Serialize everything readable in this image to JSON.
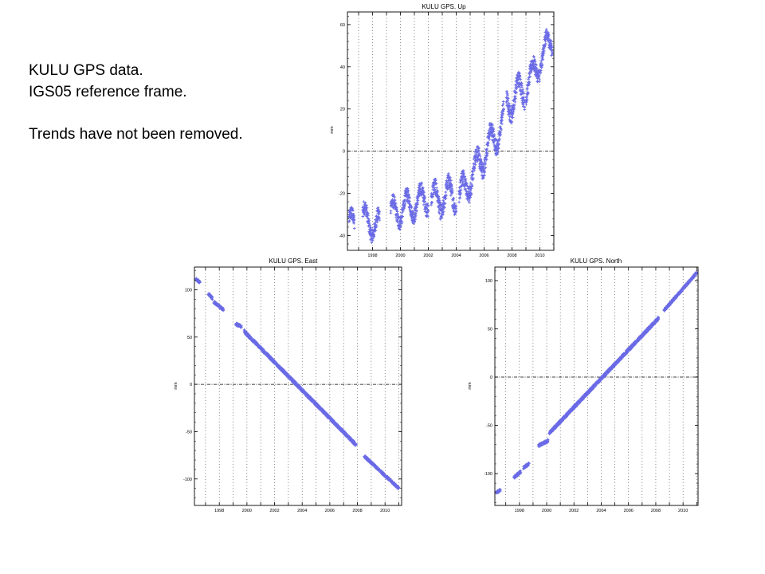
{
  "caption": {
    "line1": "KULU GPS data.",
    "line2": "IGS05 reference frame.",
    "line3": "",
    "line4": "Trends have not been removed."
  },
  "colors": {
    "points": "#6a6ae6",
    "frame": "#000000",
    "grid": "#000000"
  },
  "chart_data": [
    {
      "id": "up",
      "type": "scatter",
      "title": "KULU GPS. Up",
      "ylabel": "mm",
      "marker": "plus",
      "x_range": [
        1996.2,
        2011.0
      ],
      "ylim": [
        -47,
        66
      ],
      "yticks": [
        -40,
        -20,
        0,
        20,
        40,
        60
      ],
      "xticks": [
        "1998",
        "2000",
        "2002",
        "2004",
        "2006",
        "2008",
        "2010"
      ],
      "reference_line_y": 0,
      "segments": [
        {
          "x0": 1996.3,
          "x1": 1996.7,
          "y0": -36,
          "y1": -34,
          "amp": 6
        },
        {
          "x0": 1997.3,
          "x1": 1998.5,
          "y0": -32,
          "y1": -36,
          "amp": 6
        },
        {
          "x0": 1999.3,
          "x1": 2002.0,
          "y0": -30,
          "y1": -22,
          "amp": 6
        },
        {
          "x0": 2002.2,
          "x1": 2004.0,
          "y0": -24,
          "y1": -20,
          "amp": 7
        },
        {
          "x0": 2004.2,
          "x1": 2007.4,
          "y0": -22,
          "y1": 14,
          "amp": 7
        },
        {
          "x0": 2007.6,
          "x1": 2008.9,
          "y0": 22,
          "y1": 30,
          "amp": 7
        },
        {
          "x0": 2009.0,
          "x1": 2010.9,
          "y0": 30,
          "y1": 54,
          "amp": 6
        }
      ]
    },
    {
      "id": "east",
      "type": "scatter",
      "title": "KULU GPS. East",
      "ylabel": "mm",
      "marker": "plus",
      "x_range": [
        1996.2,
        2011.2
      ],
      "ylim": [
        -128,
        124
      ],
      "yticks": [
        -100,
        -50,
        0,
        50,
        100
      ],
      "xticks": [
        "1998",
        "2000",
        "2002",
        "2004",
        "2006",
        "2008",
        "2010"
      ],
      "reference_line_y": 0,
      "segments": [
        {
          "x0": 1996.3,
          "x1": 1996.6,
          "y0": 111,
          "y1": 108,
          "amp": 2
        },
        {
          "x0": 1997.2,
          "x1": 1997.5,
          "y0": 96,
          "y1": 91,
          "amp": 2
        },
        {
          "x0": 1997.6,
          "x1": 1998.3,
          "y0": 87,
          "y1": 79,
          "amp": 2
        },
        {
          "x0": 1999.2,
          "x1": 1999.6,
          "y0": 64,
          "y1": 61,
          "amp": 2
        },
        {
          "x0": 1999.8,
          "x1": 2007.9,
          "y0": 56,
          "y1": -64,
          "amp": 2.5
        },
        {
          "x0": 2008.5,
          "x1": 2011.0,
          "y0": -76,
          "y1": -110,
          "amp": 2
        }
      ]
    },
    {
      "id": "north",
      "type": "scatter",
      "title": "KULU GPS. North",
      "ylabel": "mm",
      "marker": "plus",
      "x_range": [
        1996.2,
        2011.1
      ],
      "ylim": [
        -133,
        114
      ],
      "yticks": [
        -100,
        -50,
        0,
        50,
        100
      ],
      "xticks": [
        "1998",
        "2000",
        "2002",
        "2004",
        "2006",
        "2008",
        "2010"
      ],
      "reference_line_y": 0,
      "segments": [
        {
          "x0": 1996.3,
          "x1": 1996.6,
          "y0": -120,
          "y1": -117,
          "amp": 2
        },
        {
          "x0": 1997.6,
          "x1": 1998.1,
          "y0": -104,
          "y1": -98,
          "amp": 2
        },
        {
          "x0": 1998.3,
          "x1": 1998.7,
          "y0": -94,
          "y1": -90,
          "amp": 2
        },
        {
          "x0": 1999.4,
          "x1": 2000.1,
          "y0": -71,
          "y1": -66,
          "amp": 2
        },
        {
          "x0": 2000.2,
          "x1": 2008.2,
          "y0": -58,
          "y1": 61,
          "amp": 2.5
        },
        {
          "x0": 2008.6,
          "x1": 2011.0,
          "y0": 69,
          "y1": 108,
          "amp": 2
        }
      ]
    }
  ]
}
